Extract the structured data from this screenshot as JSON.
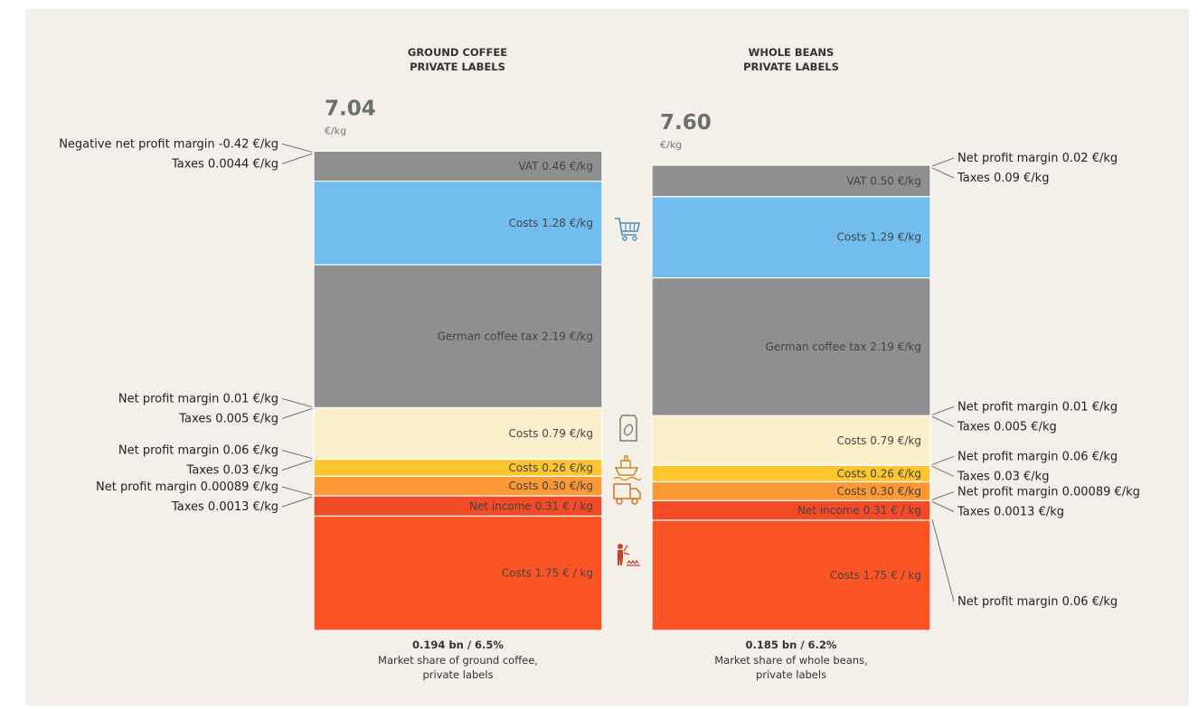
{
  "colors": {
    "vat": "#8f8f8f",
    "retail_costs": "#72bdf0",
    "coffee_tax": "#8f8f8f",
    "roaster_costs": "#fbf0cb",
    "transport_costs": "#fdc52e",
    "export_costs": "#fc9937",
    "net_income": "#f34a27",
    "farm_costs": "#fb5525",
    "background": "#f3efe9"
  },
  "stage_icons": [
    "shopping-cart-icon",
    "coffee-bag-icon",
    "ship-icon",
    "truck-icon",
    "farmer-icon"
  ],
  "chart_data": {
    "type": "bar",
    "stacked": true,
    "bar_order": "top-to-bottom",
    "columns": [
      {
        "title_lines": [
          "GROUND COFFEE",
          "PRIVATE LABELS"
        ],
        "total": "7.04",
        "total_value": 7.04,
        "unit": "€/kg",
        "segments": [
          {
            "key": "vat",
            "label": "VAT 0.46 €/kg",
            "value": 0.46
          },
          {
            "key": "retail_costs",
            "label": "Costs 1.28 €/kg",
            "value": 1.28
          },
          {
            "key": "coffee_tax",
            "label": "German coffee tax 2.19 €/kg",
            "value": 2.19
          },
          {
            "key": "roaster_costs",
            "label": "Costs 0.79 €/kg",
            "value": 0.79
          },
          {
            "key": "transport_costs",
            "label": "Costs 0.26 €/kg",
            "value": 0.26
          },
          {
            "key": "export_costs",
            "label": "Costs 0.30 €/kg",
            "value": 0.3
          },
          {
            "key": "net_income",
            "label": "Net income 0.31 € / kg",
            "value": 0.31
          },
          {
            "key": "farm_costs",
            "label": "Costs 1.75 € / kg",
            "value": 1.75
          }
        ],
        "side_labels": [
          {
            "text": "Negative net profit margin -0.42 €/kg",
            "boundary": 0
          },
          {
            "text": "Taxes 0.0044 €/kg",
            "boundary": 0
          },
          {
            "text": "Net profit margin 0.01 €/kg",
            "boundary": 3
          },
          {
            "text": "Taxes 0.005 €/kg",
            "boundary": 3
          },
          {
            "text": "Net profit margin 0.06 €/kg",
            "boundary": 4
          },
          {
            "text": "Taxes 0.03 €/kg",
            "boundary": 4
          },
          {
            "text": "Net profit margin 0.00089 €/kg",
            "boundary": 6
          },
          {
            "text": "Taxes 0.0013 €/kg",
            "boundary": 6
          }
        ],
        "market_share_value": "0.194 bn / 6.5%",
        "market_share_lines": [
          "Market share of ground coffee,",
          "private labels"
        ]
      },
      {
        "title_lines": [
          "WHOLE BEANS",
          "PRIVATE LABELS"
        ],
        "total": "7.60",
        "total_value": 7.6,
        "unit": "€/kg",
        "segments": [
          {
            "key": "vat",
            "label": "VAT 0.50 €/kg",
            "value": 0.5
          },
          {
            "key": "retail_costs",
            "label": "Costs 1.29 €/kg",
            "value": 1.29
          },
          {
            "key": "coffee_tax",
            "label": "German coffee tax 2.19 €/kg",
            "value": 2.19
          },
          {
            "key": "roaster_costs",
            "label": "Costs 0.79 €/kg",
            "value": 0.79
          },
          {
            "key": "transport_costs",
            "label": "Costs 0.26 €/kg",
            "value": 0.26
          },
          {
            "key": "export_costs",
            "label": "Costs 0.30 €/kg",
            "value": 0.3
          },
          {
            "key": "net_income",
            "label": "Net income 0.31 € / kg",
            "value": 0.31
          },
          {
            "key": "farm_costs",
            "label": "Costs 1.75 € / kg",
            "value": 1.75
          }
        ],
        "side_labels": [
          {
            "text": "Net profit margin 0.02 €/kg",
            "boundary": 0
          },
          {
            "text": "Taxes 0.09 €/kg",
            "boundary": 0
          },
          {
            "text": "Net profit margin 0.01 €/kg",
            "boundary": 3
          },
          {
            "text": "Taxes 0.005 €/kg",
            "boundary": 3
          },
          {
            "text": "Net profit margin 0.06 €/kg",
            "boundary": 4
          },
          {
            "text": "Taxes 0.03 €/kg",
            "boundary": 4
          },
          {
            "text": "Net profit margin 0.00089 €/kg",
            "boundary": 6
          },
          {
            "text": "Taxes 0.0013 €/kg",
            "boundary": 6
          },
          {
            "text": "Net profit margin 0.06 €/kg",
            "boundary": 7
          }
        ],
        "market_share_value": "0.185 bn / 6.2%",
        "market_share_lines": [
          "Market share of whole beans,",
          "private labels"
        ]
      }
    ]
  }
}
